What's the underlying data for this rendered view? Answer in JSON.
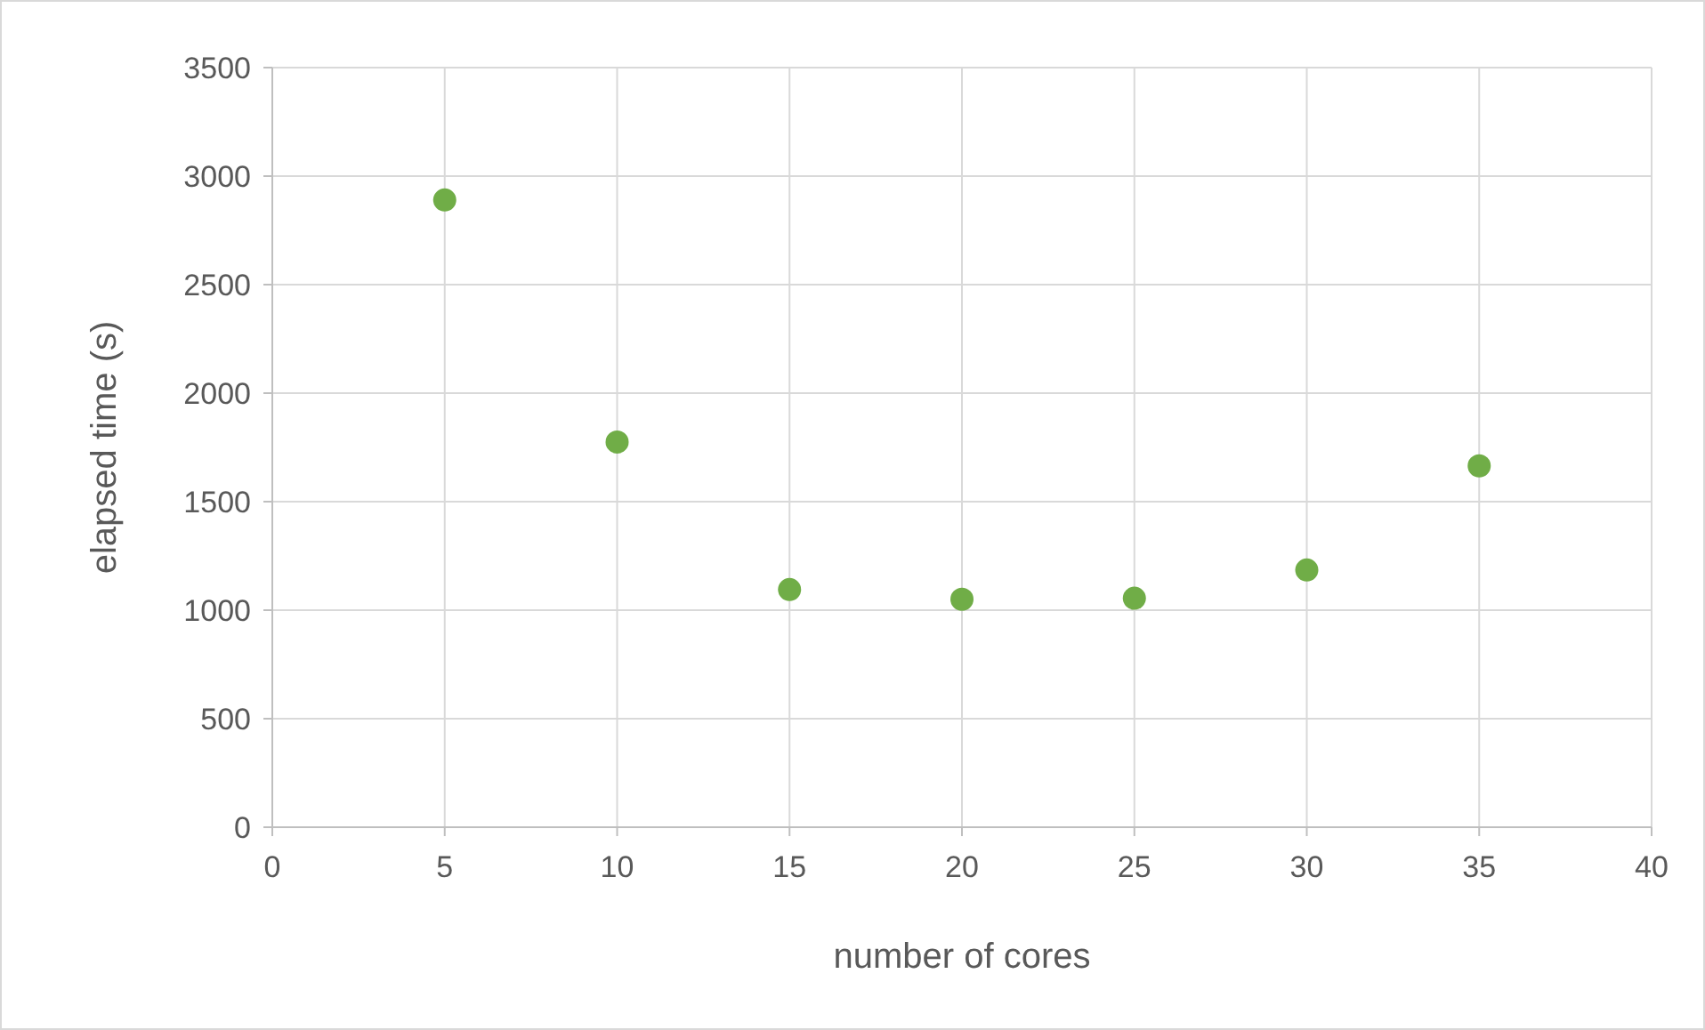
{
  "chart_data": {
    "type": "scatter",
    "xlabel": "number of cores",
    "ylabel": "elapsed time (s)",
    "x": [
      5,
      10,
      15,
      20,
      25,
      30,
      35
    ],
    "series": [
      {
        "color": "#70ad47",
        "values": [
          2890,
          1775,
          1095,
          1050,
          1055,
          1185,
          1665
        ]
      }
    ],
    "xlim": [
      0,
      40
    ],
    "xticks": [
      0,
      5,
      10,
      15,
      20,
      25,
      30,
      35,
      40
    ],
    "ylim": [
      0,
      3500
    ],
    "yticks": [
      0,
      500,
      1000,
      1500,
      2000,
      2500,
      3000,
      3500
    ],
    "grid": true,
    "marker": "circle"
  }
}
